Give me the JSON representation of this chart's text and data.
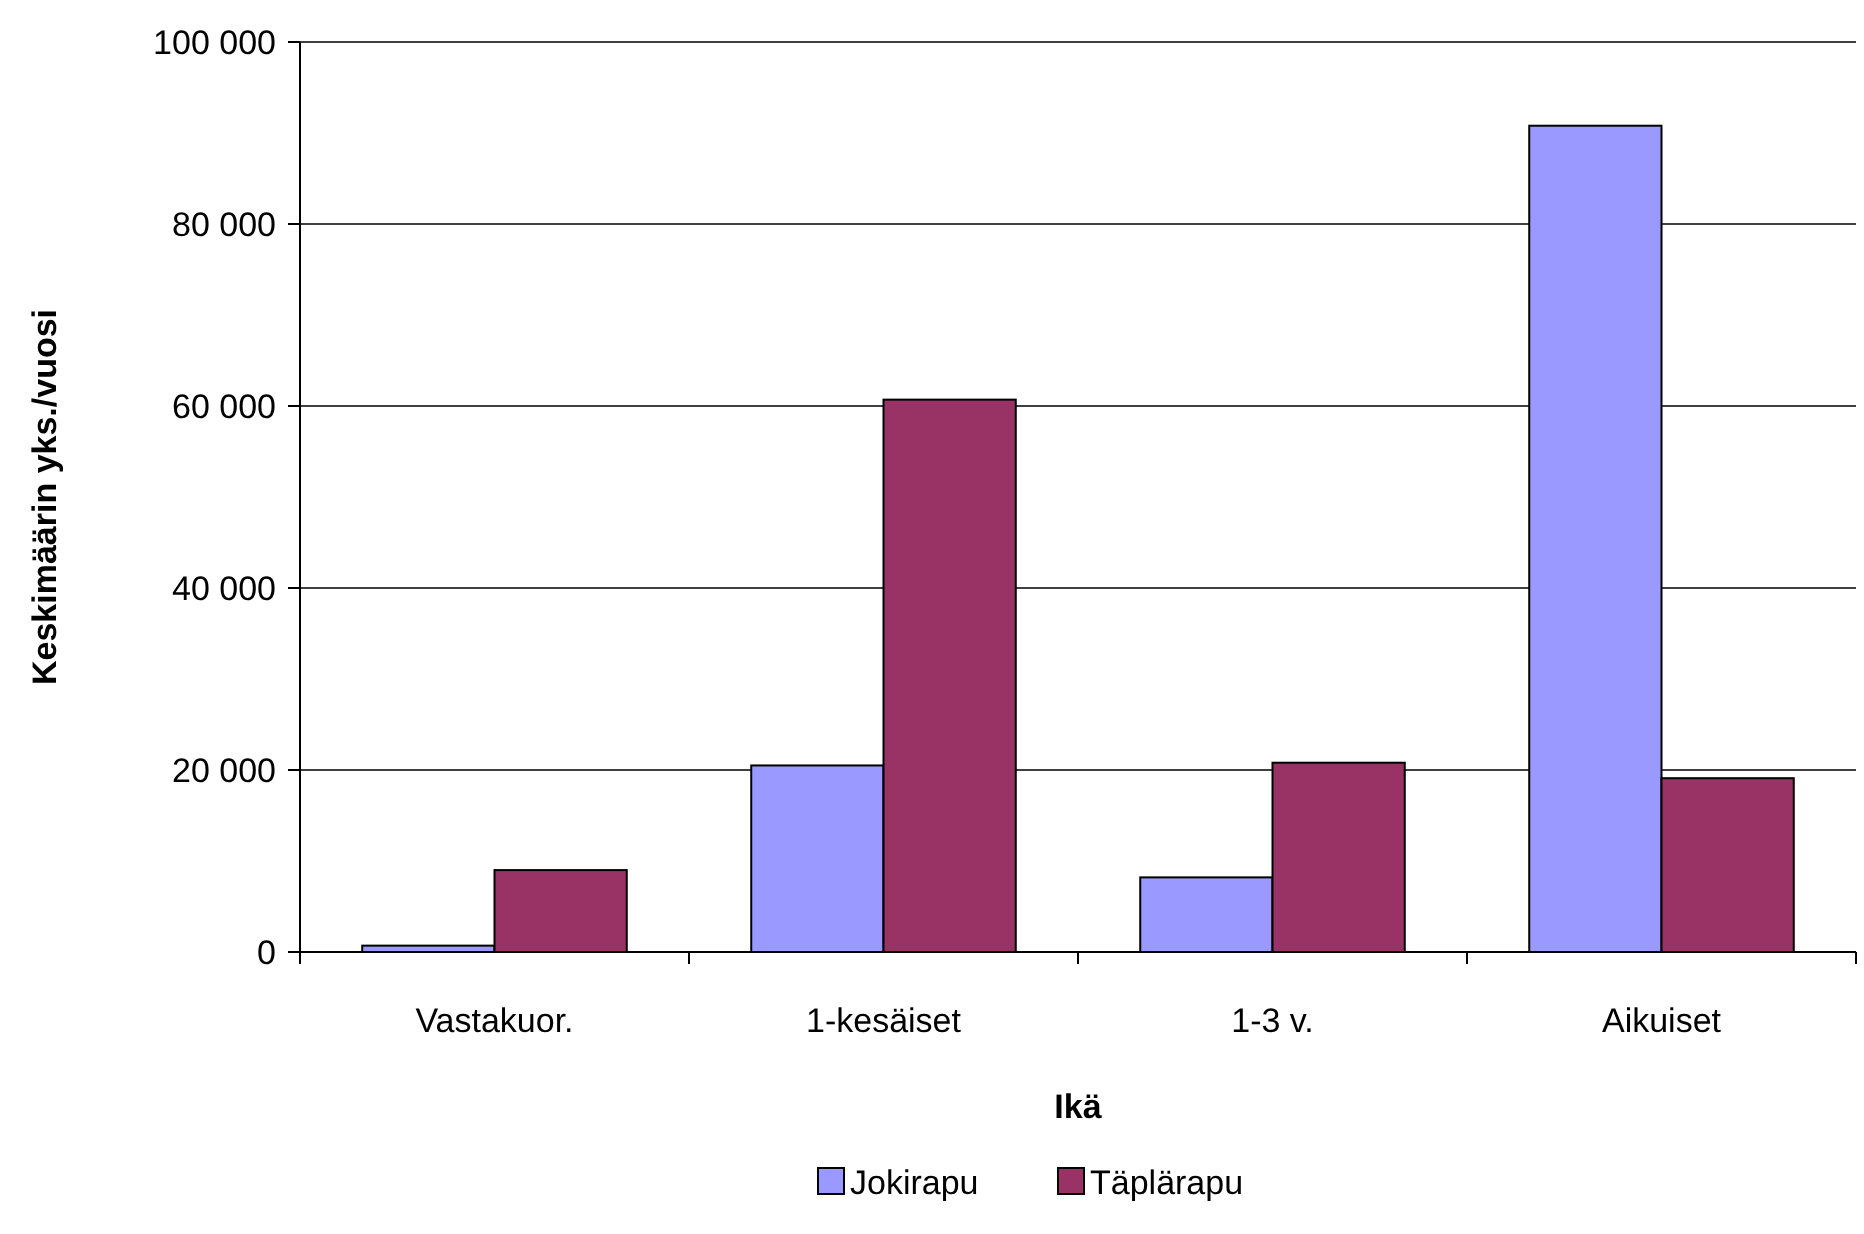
{
  "chart_data": {
    "type": "bar",
    "xlabel": "Ikä",
    "ylabel": "Keskimäärin yks./vuosi",
    "categories": [
      "Vastakuor.",
      "1-kesäiset",
      "1-3 v.",
      "Aikuiset"
    ],
    "series": [
      {
        "name": "Jokirapu",
        "color": "#9999ff",
        "values": [
          700,
          20500,
          8200,
          90800
        ]
      },
      {
        "name": "Täplärapu",
        "color": "#993366",
        "values": [
          9000,
          60700,
          20800,
          19100
        ]
      }
    ],
    "ylim": [
      0,
      100000
    ],
    "yticks": [
      {
        "value": 0,
        "label": "0"
      },
      {
        "value": 20000,
        "label": "20 000"
      },
      {
        "value": 40000,
        "label": "40 000"
      },
      {
        "value": 60000,
        "label": "60 000"
      },
      {
        "value": 80000,
        "label": "80 000"
      },
      {
        "value": 100000,
        "label": "100 000"
      }
    ],
    "grid": "y",
    "legend": "bottom"
  }
}
